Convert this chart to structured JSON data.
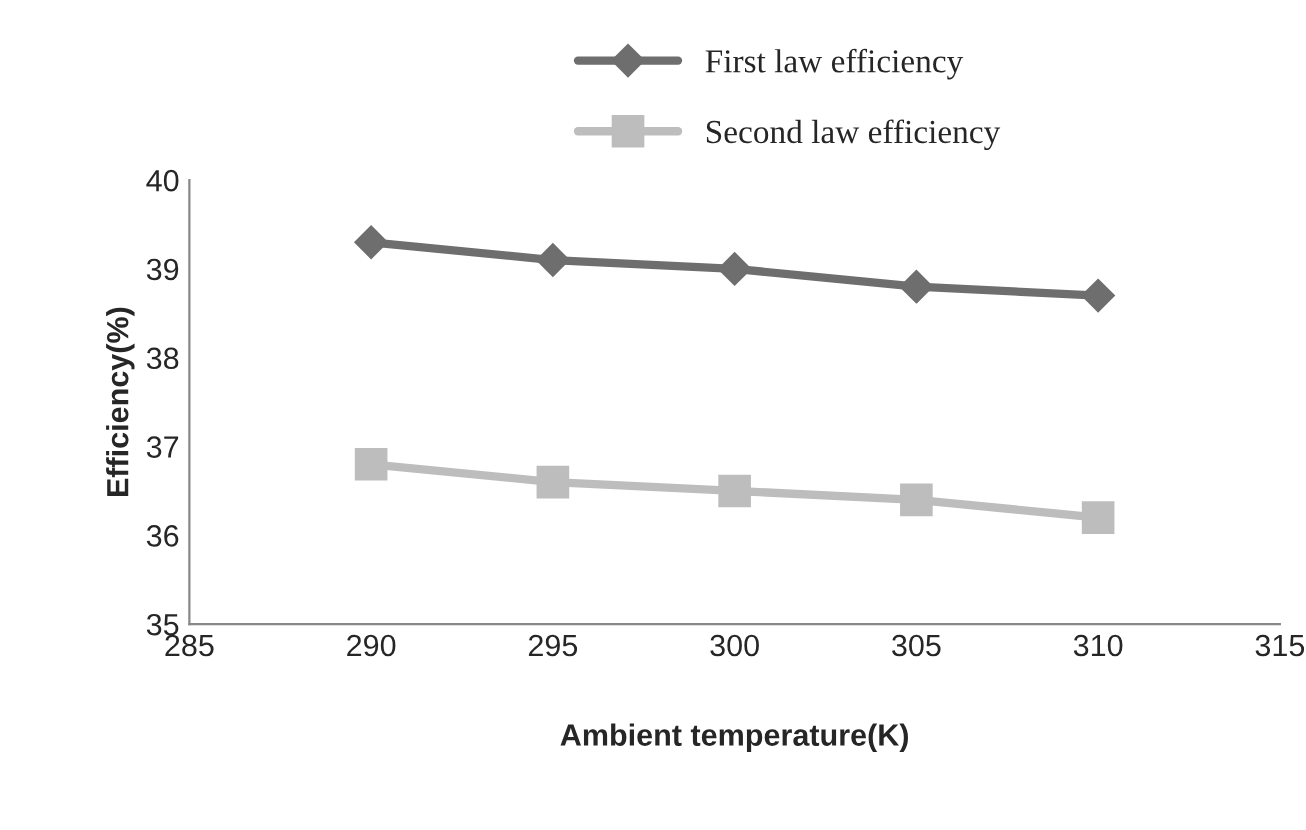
{
  "chart_data": {
    "type": "line",
    "xlabel": "Ambient temperature(K)",
    "ylabel": "Efficiency(%)",
    "x": [
      290,
      295,
      300,
      305,
      310
    ],
    "series": [
      {
        "name": "First law efficiency",
        "color": "#6e6e6e",
        "marker": "diamond",
        "values": [
          39.3,
          39.1,
          39.0,
          38.8,
          38.7
        ]
      },
      {
        "name": "Second law efficiency",
        "color": "#bdbdbd",
        "marker": "square",
        "values": [
          36.8,
          36.6,
          36.5,
          36.4,
          36.2
        ]
      }
    ],
    "xlim": [
      285,
      315
    ],
    "xticks": [
      285,
      290,
      295,
      300,
      305,
      310,
      315
    ],
    "ylim": [
      35,
      40
    ],
    "yticks": [
      35,
      36,
      37,
      38,
      39,
      40
    ],
    "grid": false,
    "legend": "top",
    "line_style": "solid"
  }
}
